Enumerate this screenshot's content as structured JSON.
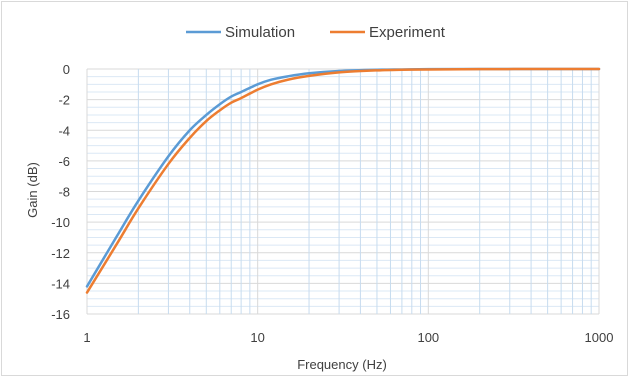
{
  "chart_data": {
    "type": "line",
    "xscale": "log",
    "xlim": [
      1,
      1000
    ],
    "ylim": [
      -16,
      0
    ],
    "x_ticks": [
      "1",
      "10",
      "100",
      "1000"
    ],
    "y_ticks": [
      "0",
      "-2",
      "-4",
      "-6",
      "-8",
      "-10",
      "-12",
      "-14",
      "-16"
    ],
    "xlabel": "Frequency (Hz)",
    "ylabel": "Gain (dB)",
    "grid": "on (major and minor)",
    "legend_position": "top",
    "series": [
      {
        "name": "Simulation",
        "color": "#5b9bd5",
        "x": [
          1,
          1.5,
          2,
          3,
          4,
          5,
          6,
          7,
          8,
          10,
          12,
          15,
          20,
          30,
          50,
          70,
          100,
          200,
          500,
          1000
        ],
        "y": [
          -14.2,
          -10.9,
          -8.6,
          -5.7,
          -4.0,
          -3.0,
          -2.3,
          -1.8,
          -1.5,
          -1.0,
          -0.7,
          -0.48,
          -0.28,
          -0.13,
          -0.05,
          -0.03,
          -0.01,
          0,
          0,
          0
        ]
      },
      {
        "name": "Experiment",
        "color": "#ed7d31",
        "x": [
          1,
          1.5,
          2,
          3,
          4,
          5,
          6,
          7,
          8,
          10,
          12,
          15,
          20,
          30,
          50,
          70,
          100,
          200,
          500,
          1000
        ],
        "y": [
          -14.6,
          -11.4,
          -9.1,
          -6.2,
          -4.5,
          -3.4,
          -2.7,
          -2.2,
          -1.9,
          -1.35,
          -1.0,
          -0.7,
          -0.45,
          -0.22,
          -0.09,
          -0.05,
          -0.03,
          -0.01,
          0,
          0
        ]
      }
    ]
  }
}
